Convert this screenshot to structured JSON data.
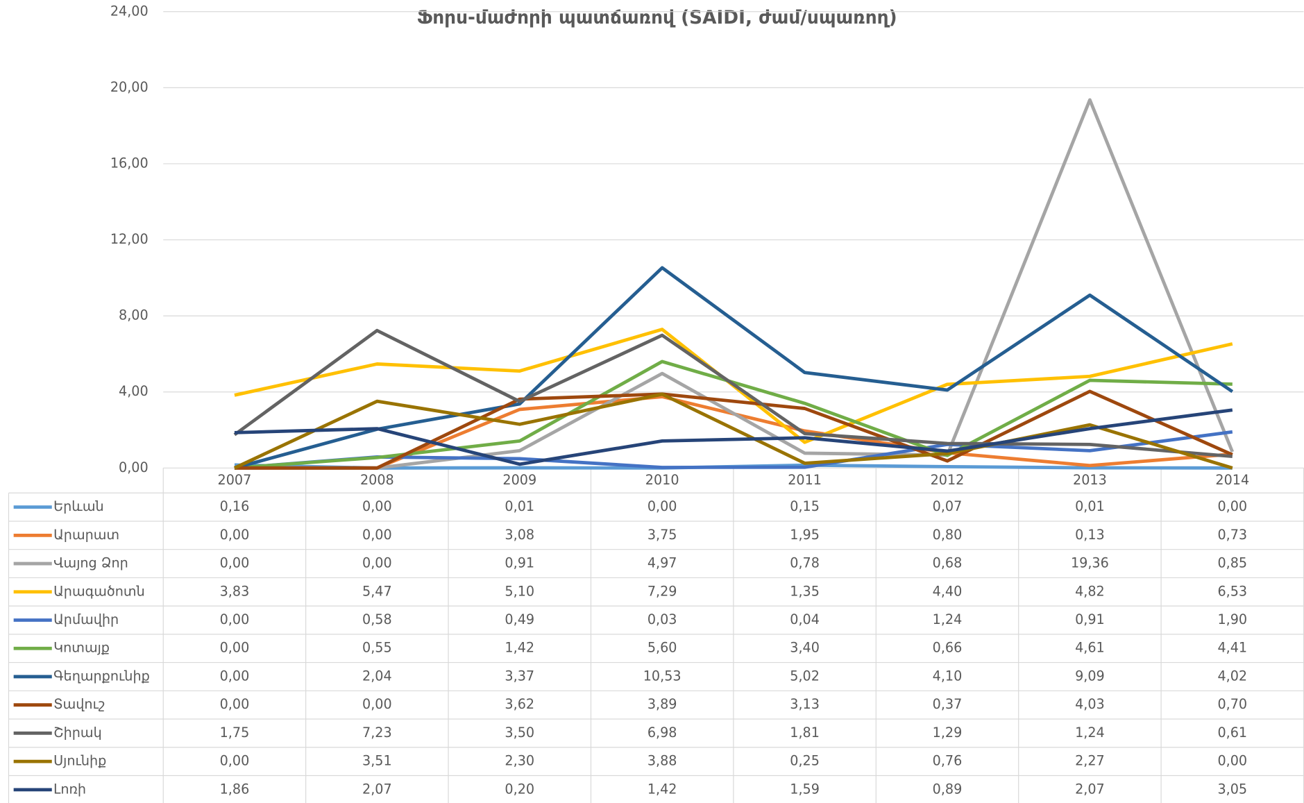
{
  "chart_data": {
    "type": "line",
    "title": "Ֆորս-մաժորի պատճառով (SAIDI, ժամ/սպառող)",
    "categories": [
      "2007",
      "2008",
      "2009",
      "2010",
      "2011",
      "2012",
      "2013",
      "2014"
    ],
    "ylim": [
      0,
      24
    ],
    "yticks": [
      {
        "value": 0,
        "label": "0,00"
      },
      {
        "value": 4,
        "label": "4,00"
      },
      {
        "value": 8,
        "label": "8,00"
      },
      {
        "value": 12,
        "label": "12,00"
      },
      {
        "value": 16,
        "label": "16,00"
      },
      {
        "value": 20,
        "label": "20,00"
      },
      {
        "value": 24,
        "label": "24,00"
      }
    ],
    "grid": true,
    "series": [
      {
        "name": "Երևան",
        "color": "#5b9bd5",
        "values": [
          0.16,
          0,
          0.01,
          0,
          0.15,
          0.07,
          0.01,
          0
        ],
        "value_labels": [
          "0,16",
          "0,00",
          "0,01",
          "0,00",
          "0,15",
          "0,07",
          "0,01",
          "0,00"
        ]
      },
      {
        "name": "Արարատ",
        "color": "#ed7d31",
        "values": [
          0,
          0,
          3.08,
          3.75,
          1.95,
          0.8,
          0.13,
          0.73
        ],
        "value_labels": [
          "0,00",
          "0,00",
          "3,08",
          "3,75",
          "1,95",
          "0,80",
          "0,13",
          "0,73"
        ]
      },
      {
        "name": "Վայոց Ձոր",
        "color": "#a5a5a5",
        "values": [
          0,
          0,
          0.91,
          4.97,
          0.78,
          0.68,
          19.36,
          0.85
        ],
        "value_labels": [
          "0,00",
          "0,00",
          "0,91",
          "4,97",
          "0,78",
          "0,68",
          "19,36",
          "0,85"
        ]
      },
      {
        "name": "Արագածոտն",
        "color": "#ffc000",
        "values": [
          3.83,
          5.47,
          5.1,
          7.29,
          1.35,
          4.4,
          4.82,
          6.53
        ],
        "value_labels": [
          "3,83",
          "5,47",
          "5,10",
          "7,29",
          "1,35",
          "4,40",
          "4,82",
          "6,53"
        ]
      },
      {
        "name": "Արմավիր",
        "color": "#4472c4",
        "values": [
          0,
          0.58,
          0.49,
          0.03,
          0.04,
          1.24,
          0.91,
          1.9
        ],
        "value_labels": [
          "0,00",
          "0,58",
          "0,49",
          "0,03",
          "0,04",
          "1,24",
          "0,91",
          "1,90"
        ]
      },
      {
        "name": "Կոտայք",
        "color": "#70ad47",
        "values": [
          0,
          0.55,
          1.42,
          5.6,
          3.4,
          0.66,
          4.61,
          4.41
        ],
        "value_labels": [
          "0,00",
          "0,55",
          "1,42",
          "5,60",
          "3,40",
          "0,66",
          "4,61",
          "4,41"
        ]
      },
      {
        "name": "Գեղարքունիք",
        "color": "#255e91",
        "values": [
          0,
          2.04,
          3.37,
          10.53,
          5.02,
          4.1,
          9.09,
          4.02
        ],
        "value_labels": [
          "0,00",
          "2,04",
          "3,37",
          "10,53",
          "5,02",
          "4,10",
          "9,09",
          "4,02"
        ]
      },
      {
        "name": "Տավուշ",
        "color": "#9e480e",
        "values": [
          0,
          0,
          3.62,
          3.89,
          3.13,
          0.37,
          4.03,
          0.7
        ],
        "value_labels": [
          "0,00",
          "0,00",
          "3,62",
          "3,89",
          "3,13",
          "0,37",
          "4,03",
          "0,70"
        ]
      },
      {
        "name": "Շիրակ",
        "color": "#636363",
        "values": [
          1.75,
          7.23,
          3.5,
          6.98,
          1.81,
          1.29,
          1.24,
          0.61
        ],
        "value_labels": [
          "1,75",
          "7,23",
          "3,50",
          "6,98",
          "1,81",
          "1,29",
          "1,24",
          "0,61"
        ]
      },
      {
        "name": "Սյունիք",
        "color": "#997300",
        "values": [
          0,
          3.51,
          2.3,
          3.88,
          0.25,
          0.76,
          2.27,
          0
        ],
        "value_labels": [
          "0,00",
          "3,51",
          "2,30",
          "3,88",
          "0,25",
          "0,76",
          "2,27",
          "0,00"
        ]
      },
      {
        "name": "Լոռի",
        "color": "#264478",
        "values": [
          1.86,
          2.07,
          0.2,
          1.42,
          1.59,
          0.89,
          2.07,
          3.05
        ],
        "value_labels": [
          "1,86",
          "2,07",
          "0,20",
          "1,42",
          "1,59",
          "0,89",
          "2,07",
          "3,05"
        ]
      }
    ]
  }
}
